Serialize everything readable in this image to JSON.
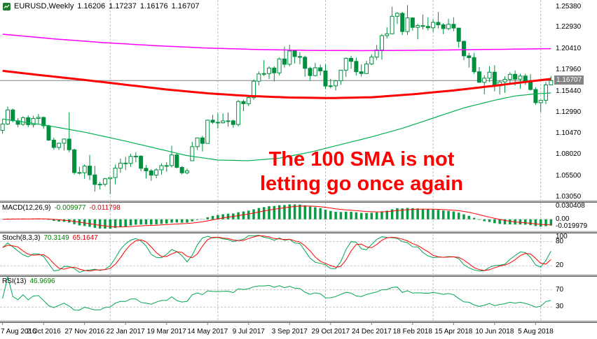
{
  "header": {
    "symbol": "EURUSD,Weekly",
    "open": "1.16206",
    "high": "1.17237",
    "low": "1.16176",
    "close": "1.16707"
  },
  "annotation": {
    "line1": "The 100 SMA is not",
    "line2": "letting go once again",
    "color": "#ff0000"
  },
  "panes": {
    "macd": {
      "label": "MACD(12,26,9)",
      "value1": "-0.009977",
      "value2": "-0.011798",
      "fast": 12,
      "slow": 26,
      "signal": 9,
      "range": [
        -0.0215,
        0.0315
      ],
      "axis_labels": [
        {
          "v": 0.030408,
          "t": "0.030408"
        },
        {
          "v": 0,
          "t": "0.00"
        },
        {
          "v": -0.019979,
          "t": "-0.019979"
        }
      ]
    },
    "stoch": {
      "label": "Stoch(8,3,3)",
      "value1": "70.3149",
      "value2": "65.1647",
      "k_period": 8,
      "d_period": 3,
      "slowing": 3,
      "levels": [
        80,
        20
      ],
      "axis_labels": [
        {
          "v": 100,
          "t": "100"
        },
        {
          "v": 80,
          "t": "80"
        },
        {
          "v": 20,
          "t": "20"
        }
      ]
    },
    "rsi": {
      "label": "RSI(13)",
      "value": "46.9696",
      "period": 13,
      "levels": [
        70,
        30
      ],
      "axis_labels": [
        {
          "v": 70,
          "t": "70"
        },
        {
          "v": 30,
          "t": "30"
        }
      ]
    }
  },
  "chart_data": {
    "type": "candlestick",
    "title": "EURUSD Weekly",
    "symbol": "EURUSD",
    "timeframe": "Weekly",
    "price_range": [
      1.027,
      1.26
    ],
    "current_price": {
      "v": 1.16707,
      "t": "1.16707"
    },
    "price_axis_labels": [
      {
        "v": 1.2538,
        "t": "1.25380"
      },
      {
        "v": 1.2293,
        "t": "1.22930"
      },
      {
        "v": 1.2041,
        "t": "1.20410"
      },
      {
        "v": 1.1796,
        "t": "1.17960"
      },
      {
        "v": 1.1544,
        "t": "1.15440"
      },
      {
        "v": 1.1299,
        "t": "1.12990"
      },
      {
        "v": 1.1047,
        "t": "1.10470"
      },
      {
        "v": 1.0802,
        "t": "1.08020"
      },
      {
        "v": 1.055,
        "t": "1.05500"
      },
      {
        "v": 1.0305,
        "t": "1.03050"
      }
    ],
    "x_labels": [
      "7 Aug 2016",
      "2 Oct 2016",
      "27 Nov 2016",
      "22 Jan 2017",
      "19 Mar 2017",
      "14 May 2017",
      "9 Jul 2017",
      "3 Sep 2017",
      "29 Oct 2017",
      "24 Dec 2017",
      "18 Feb 2018",
      "15 Apr 2018",
      "10 Jun 2018",
      "5 Aug 2018"
    ],
    "label_step": 8,
    "gridline_indices": [
      21,
      42,
      63,
      84,
      105
    ],
    "candles_ohlc": [
      [
        1.1087,
        1.1222,
        1.1046,
        1.1161
      ],
      [
        1.1161,
        1.1366,
        1.1149,
        1.1326
      ],
      [
        1.1326,
        1.1342,
        1.1183,
        1.1199
      ],
      [
        1.1199,
        1.123,
        1.1123,
        1.1157
      ],
      [
        1.1157,
        1.1252,
        1.1139,
        1.1235
      ],
      [
        1.1235,
        1.1262,
        1.1123,
        1.1153
      ],
      [
        1.1153,
        1.1258,
        1.1119,
        1.1226
      ],
      [
        1.1226,
        1.1279,
        1.1153,
        1.1238
      ],
      [
        1.1238,
        1.125,
        1.1104,
        1.114
      ],
      [
        1.114,
        1.1152,
        1.0962,
        1.0972
      ],
      [
        1.0972,
        1.1,
        1.0858,
        1.0886
      ],
      [
        1.0886,
        1.0944,
        1.0857,
        1.0935
      ],
      [
        1.0935,
        1.0992,
        1.0851,
        1.0984
      ],
      [
        1.0984,
        1.1299,
        1.0829,
        1.0858
      ],
      [
        1.0858,
        1.0871,
        1.0567,
        1.0591
      ],
      [
        1.0591,
        1.0659,
        1.0569,
        1.0589
      ],
      [
        1.0589,
        1.0687,
        1.0518,
        1.0667
      ],
      [
        1.0667,
        1.0797,
        1.0503,
        1.0563
      ],
      [
        1.0563,
        1.067,
        1.0367,
        1.0452
      ],
      [
        1.0452,
        1.0482,
        1.0392,
        1.0454
      ],
      [
        1.0454,
        1.053,
        1.0428,
        1.0518
      ],
      [
        1.0518,
        1.0534,
        1.034,
        1.0532
      ],
      [
        1.0532,
        1.0685,
        1.0454,
        1.0643
      ],
      [
        1.0643,
        1.0755,
        1.0589,
        1.0702
      ],
      [
        1.0702,
        1.0775,
        1.062,
        1.0698
      ],
      [
        1.0698,
        1.0812,
        1.0658,
        1.078
      ],
      [
        1.078,
        1.0829,
        1.071,
        1.0783
      ],
      [
        1.0783,
        1.0795,
        1.0608,
        1.0641
      ],
      [
        1.0641,
        1.0679,
        1.0521,
        1.0611
      ],
      [
        1.0611,
        1.0631,
        1.0494,
        1.0561
      ],
      [
        1.0561,
        1.0641,
        1.0525,
        1.0623
      ],
      [
        1.0623,
        1.0699,
        1.0567,
        1.0672
      ],
      [
        1.0672,
        1.0714,
        1.0602,
        1.0673
      ],
      [
        1.0673,
        1.0905,
        1.0652,
        1.0798
      ],
      [
        1.0798,
        1.0823,
        1.0641,
        1.0652
      ],
      [
        1.0652,
        1.0667,
        1.0569,
        1.0588
      ],
      [
        1.0588,
        1.0638,
        1.057,
        1.0612
      ],
      [
        1.073,
        1.0951,
        1.073,
        1.0895
      ],
      [
        1.0895,
        1.0999,
        1.0855,
        1.0998
      ],
      [
        1.0998,
        1.1023,
        1.0839,
        1.0933
      ],
      [
        1.0933,
        1.1212,
        1.0933,
        1.1206
      ],
      [
        1.1206,
        1.1268,
        1.1161,
        1.1181
      ],
      [
        1.1181,
        1.1285,
        1.1109,
        1.1175
      ],
      [
        1.1175,
        1.1285,
        1.1166,
        1.1197
      ],
      [
        1.1197,
        1.1296,
        1.1131,
        1.1198
      ],
      [
        1.1198,
        1.1212,
        1.1118,
        1.1155
      ],
      [
        1.1155,
        1.1445,
        1.1133,
        1.1425
      ],
      [
        1.1425,
        1.1445,
        1.1312,
        1.1399
      ],
      [
        1.1399,
        1.1489,
        1.137,
        1.147
      ],
      [
        1.147,
        1.1684,
        1.1447,
        1.1663
      ],
      [
        1.1663,
        1.1777,
        1.1613,
        1.1749
      ],
      [
        1.1749,
        1.191,
        1.1723,
        1.1753
      ],
      [
        1.1753,
        1.1838,
        1.1689,
        1.1818
      ],
      [
        1.1818,
        1.1838,
        1.1661,
        1.1761
      ],
      [
        1.1761,
        1.1941,
        1.173,
        1.1925
      ],
      [
        1.1925,
        1.207,
        1.1823,
        1.1862
      ],
      [
        1.1862,
        1.2092,
        1.1838,
        1.2018
      ],
      [
        1.2018,
        1.203,
        1.1871,
        1.1953
      ],
      [
        1.1953,
        1.2005,
        1.1862,
        1.1944
      ],
      [
        1.1944,
        1.1963,
        1.1717,
        1.1814
      ],
      [
        1.1814,
        1.1833,
        1.167,
        1.1729
      ],
      [
        1.1729,
        1.188,
        1.1719,
        1.1821
      ],
      [
        1.1821,
        1.1859,
        1.173,
        1.1784
      ],
      [
        1.1784,
        1.1861,
        1.1574,
        1.1606
      ],
      [
        1.1606,
        1.169,
        1.1579,
        1.1609
      ],
      [
        1.1609,
        1.1678,
        1.1554,
        1.1668
      ],
      [
        1.1668,
        1.1795,
        1.1622,
        1.1793
      ],
      [
        1.1793,
        1.1943,
        1.1713,
        1.1932
      ],
      [
        1.1932,
        1.1961,
        1.1809,
        1.1896
      ],
      [
        1.1896,
        1.194,
        1.173,
        1.1774
      ],
      [
        1.1774,
        1.1863,
        1.1717,
        1.1753
      ],
      [
        1.1753,
        1.1901,
        1.1749,
        1.1865
      ],
      [
        1.1865,
        1.1979,
        1.1853,
        1.1946
      ],
      [
        1.1946,
        1.2089,
        1.1914,
        1.203
      ],
      [
        1.203,
        1.2218,
        1.1916,
        1.2198
      ],
      [
        1.2198,
        1.2296,
        1.2165,
        1.222
      ],
      [
        1.222,
        1.2538,
        1.2214,
        1.2425
      ],
      [
        1.2425,
        1.2475,
        1.2335,
        1.246
      ],
      [
        1.246,
        1.2478,
        1.2206,
        1.2246
      ],
      [
        1.2246,
        1.2556,
        1.2206,
        1.2406
      ],
      [
        1.2406,
        1.2413,
        1.2258,
        1.2295
      ],
      [
        1.2295,
        1.2336,
        1.2155,
        1.2316
      ],
      [
        1.2316,
        1.2446,
        1.227,
        1.2307
      ],
      [
        1.2307,
        1.2413,
        1.2259,
        1.229
      ],
      [
        1.229,
        1.2389,
        1.224,
        1.2354
      ],
      [
        1.2354,
        1.2476,
        1.2283,
        1.2325
      ],
      [
        1.2325,
        1.2345,
        1.2215,
        1.2281
      ],
      [
        1.2281,
        1.2396,
        1.226,
        1.2331
      ],
      [
        1.2331,
        1.2414,
        1.225,
        1.2287
      ],
      [
        1.2287,
        1.229,
        1.2055,
        1.2131
      ],
      [
        1.2131,
        1.2141,
        1.191,
        1.1961
      ],
      [
        1.1961,
        1.1996,
        1.1823,
        1.194
      ],
      [
        1.194,
        1.1995,
        1.175,
        1.1774
      ],
      [
        1.1774,
        1.183,
        1.1646,
        1.165
      ],
      [
        1.165,
        1.1733,
        1.151,
        1.1699
      ],
      [
        1.1699,
        1.184,
        1.1653,
        1.1769
      ],
      [
        1.1769,
        1.1852,
        1.1543,
        1.1609
      ],
      [
        1.1609,
        1.1675,
        1.1508,
        1.1655
      ],
      [
        1.1655,
        1.1721,
        1.1527,
        1.1685
      ],
      [
        1.1685,
        1.1768,
        1.1631,
        1.1744
      ],
      [
        1.1744,
        1.179,
        1.1613,
        1.1687
      ],
      [
        1.1687,
        1.175,
        1.1575,
        1.1724
      ],
      [
        1.1724,
        1.175,
        1.162,
        1.1657
      ],
      [
        1.1657,
        1.1745,
        1.1553,
        1.1566
      ],
      [
        1.1566,
        1.1593,
        1.1385,
        1.1411
      ],
      [
        1.1411,
        1.1445,
        1.1301,
        1.144
      ],
      [
        1.144,
        1.1654,
        1.1394,
        1.162
      ],
      [
        1.16206,
        1.17237,
        1.16176,
        1.16707
      ]
    ],
    "overlays": [
      {
        "name": "sma-50-line",
        "color": "#00b050",
        "width": 1.2,
        "anchors_i": [
          0,
          8,
          16,
          24,
          30,
          36,
          42,
          48,
          54,
          60,
          66,
          72,
          78,
          84,
          90,
          96,
          100,
          104,
          107
        ],
        "anchors_v": [
          1.122,
          1.115,
          1.1065,
          1.096,
          1.0875,
          1.079,
          1.0738,
          1.073,
          1.076,
          1.083,
          1.092,
          1.101,
          1.111,
          1.123,
          1.135,
          1.144,
          1.149,
          1.1515,
          1.1525
        ]
      },
      {
        "name": "sma-200-line",
        "color": "#ff00ff",
        "width": 1.5,
        "anchors_i": [
          0,
          10,
          20,
          30,
          40,
          50,
          60,
          70,
          80,
          90,
          100,
          107
        ],
        "anchors_v": [
          1.2215,
          1.216,
          1.2115,
          1.208,
          1.2052,
          1.2035,
          1.2025,
          1.2022,
          1.2026,
          1.2032,
          1.204,
          1.2045
        ]
      },
      {
        "name": "sma-100-line",
        "color": "#ff0000",
        "width": 3,
        "anchors_i": [
          0,
          8,
          16,
          24,
          32,
          40,
          48,
          56,
          64,
          72,
          80,
          88,
          96,
          102,
          107
        ],
        "anchors_v": [
          1.1785,
          1.173,
          1.1678,
          1.1622,
          1.1566,
          1.1521,
          1.149,
          1.1472,
          1.1465,
          1.1475,
          1.151,
          1.1555,
          1.161,
          1.1655,
          1.169
        ]
      }
    ],
    "colors": {
      "candle": "#008f3f",
      "macd_hist": "#089b43",
      "signal": "#ff0000",
      "stoch_main": "#00a651",
      "rsi_line": "#00a651",
      "grid": "#bdbdbd",
      "levels": "#c9c9c9",
      "price_line": "#808080",
      "badge_bg": "#848484",
      "axis_text": "#000000",
      "annotation": "#ff0000"
    }
  }
}
